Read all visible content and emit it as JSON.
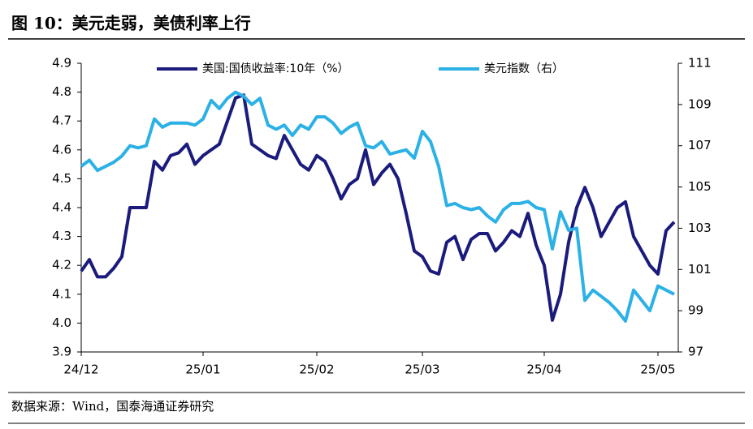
{
  "title": "图 10：美元走弱，美债利率上行",
  "source": "数据来源：Wind，国泰海通证券研究",
  "chart_data": {
    "type": "line",
    "categories": [
      "24/12",
      null,
      null,
      null,
      null,
      null,
      null,
      null,
      null,
      null,
      null,
      null,
      null,
      null,
      null,
      "25/01",
      null,
      null,
      null,
      null,
      null,
      null,
      null,
      null,
      null,
      null,
      null,
      null,
      null,
      "25/02",
      null,
      null,
      null,
      null,
      null,
      null,
      null,
      null,
      null,
      null,
      null,
      null,
      "25/03",
      null,
      null,
      null,
      null,
      null,
      null,
      null,
      null,
      null,
      null,
      null,
      null,
      null,
      null,
      "25/04",
      null,
      null,
      null,
      null,
      null,
      null,
      null,
      null,
      null,
      null,
      null,
      null,
      null,
      "25/05",
      null,
      null
    ],
    "series": [
      {
        "name": "美国:国债收益率:10年（%）",
        "color": "#1b1b7d",
        "axis": "y",
        "values": [
          4.18,
          4.22,
          4.16,
          4.16,
          4.19,
          4.23,
          4.4,
          4.4,
          4.4,
          4.56,
          4.53,
          4.58,
          4.59,
          4.62,
          4.55,
          4.58,
          4.6,
          4.62,
          4.7,
          4.78,
          4.79,
          4.62,
          4.6,
          4.58,
          4.57,
          4.65,
          4.6,
          4.55,
          4.53,
          4.58,
          4.56,
          4.5,
          4.43,
          4.48,
          4.5,
          4.6,
          4.48,
          4.52,
          4.55,
          4.5,
          4.38,
          4.25,
          4.23,
          4.18,
          4.17,
          4.28,
          4.3,
          4.22,
          4.29,
          4.31,
          4.31,
          4.25,
          4.28,
          4.32,
          4.3,
          4.38,
          4.27,
          4.2,
          4.01,
          4.1,
          4.28,
          4.4,
          4.47,
          4.4,
          4.3,
          4.35,
          4.4,
          4.42,
          4.3,
          4.25,
          4.2,
          4.17,
          4.32,
          4.35
        ]
      },
      {
        "name": "美元指数（右）",
        "color": "#2cb1e6",
        "axis": "y2",
        "values": [
          106.0,
          106.3,
          105.8,
          106.0,
          106.2,
          106.5,
          107.0,
          106.9,
          107.0,
          108.3,
          107.9,
          108.1,
          108.1,
          108.1,
          108.0,
          108.3,
          109.2,
          108.8,
          109.3,
          109.6,
          109.4,
          109.0,
          109.3,
          108.0,
          107.8,
          108.0,
          107.5,
          108.0,
          107.8,
          108.4,
          108.4,
          108.1,
          107.6,
          107.9,
          108.1,
          107.0,
          106.9,
          107.2,
          106.6,
          106.7,
          106.8,
          106.4,
          107.7,
          107.2,
          106.0,
          104.1,
          104.2,
          104.0,
          103.9,
          104.0,
          103.6,
          103.3,
          103.9,
          104.2,
          104.2,
          104.3,
          104.0,
          103.9,
          102.0,
          103.8,
          102.9,
          103.0,
          99.5,
          100.0,
          99.7,
          99.4,
          99.0,
          98.5,
          100.0,
          99.5,
          99.0,
          100.2,
          100.0,
          99.8
        ]
      }
    ],
    "ylim": [
      3.9,
      4.9
    ],
    "yticks": [
      3.9,
      {
        "value": 4,
        "label": "4.0"
      },
      4.1,
      4.2,
      4.3,
      4.4,
      4.5,
      4.6,
      4.7,
      4.8,
      4.9
    ],
    "y2lim": [
      97,
      111
    ],
    "y2ticks": [
      97,
      99,
      101,
      103,
      105,
      107,
      109,
      111
    ],
    "legend": "top"
  }
}
